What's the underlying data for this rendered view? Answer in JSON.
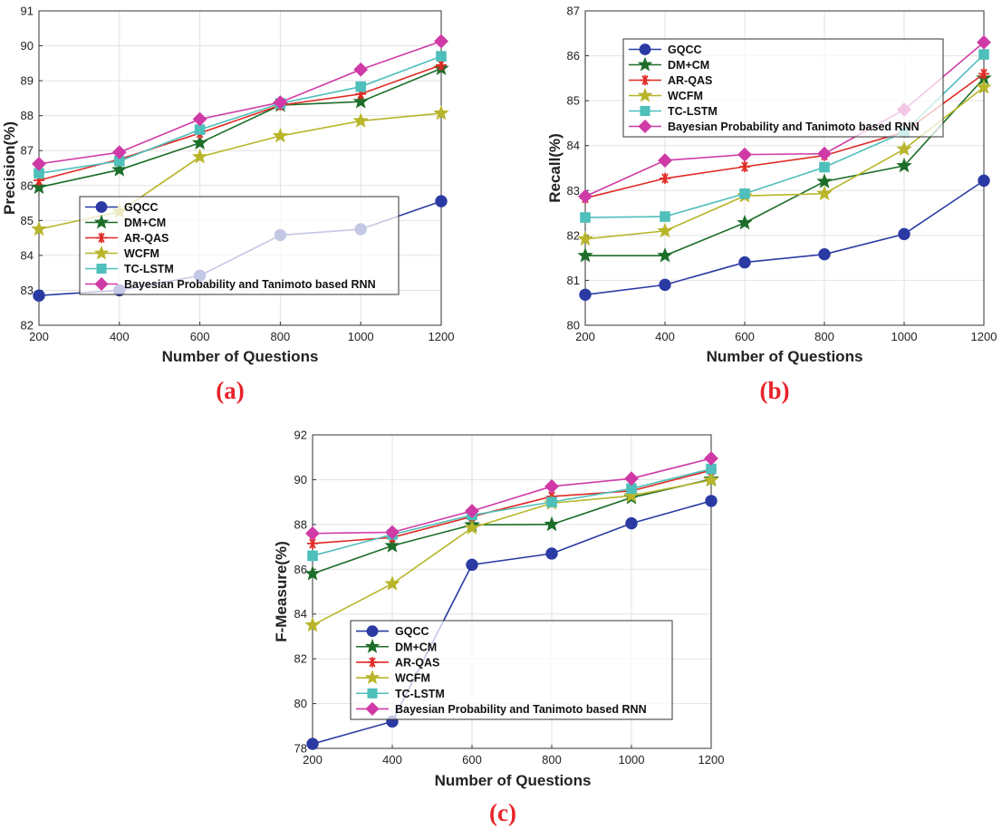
{
  "figure": {
    "captions": [
      "(a)",
      "(b)",
      "(c)"
    ]
  },
  "series_style": [
    {
      "name": "GQCC",
      "color": "#2b3aa3",
      "marker": "circle"
    },
    {
      "name": "DM+CM",
      "color": "#1d6e2a",
      "marker": "star"
    },
    {
      "name": "AR-QAS",
      "color": "#e02a25",
      "marker": "asterisk"
    },
    {
      "name": "WCFM",
      "color": "#b8b52a",
      "marker": "star"
    },
    {
      "name": "TC-LSTM",
      "color": "#4fbfbb",
      "marker": "square"
    },
    {
      "name": "Bayesian Probability and Tanimoto based RNN",
      "color": "#cf3aa6",
      "marker": "diamond"
    }
  ],
  "chart_data": [
    {
      "type": "line",
      "caption": "(a)",
      "xlabel": "Number of Questions",
      "ylabel": "Precision(%)",
      "x": [
        200,
        400,
        600,
        800,
        1000,
        1200
      ],
      "xlim": [
        200,
        1200
      ],
      "ylim": [
        82,
        91
      ],
      "yticks": [
        82,
        83,
        84,
        85,
        86,
        87,
        88,
        89,
        90,
        91
      ],
      "grid": true,
      "legend": "lower-left",
      "series": [
        {
          "name": "GQCC",
          "values": [
            82.85,
            83.0,
            83.42,
            84.58,
            84.75,
            85.55
          ]
        },
        {
          "name": "DM+CM",
          "values": [
            85.95,
            86.45,
            87.22,
            88.3,
            88.4,
            89.35
          ]
        },
        {
          "name": "AR-QAS",
          "values": [
            86.15,
            86.75,
            87.5,
            88.3,
            88.62,
            89.45
          ]
        },
        {
          "name": "WCFM",
          "values": [
            84.75,
            85.25,
            86.82,
            87.42,
            87.85,
            88.07
          ]
        },
        {
          "name": "TC-LSTM",
          "values": [
            86.35,
            86.7,
            87.6,
            88.35,
            88.83,
            89.7
          ]
        },
        {
          "name": "Bayesian Probability and Tanimoto based RNN",
          "values": [
            86.62,
            86.95,
            87.9,
            88.38,
            89.32,
            90.13
          ]
        }
      ]
    },
    {
      "type": "line",
      "caption": "(b)",
      "xlabel": "Number of Questions",
      "ylabel": "Recall(%)",
      "x": [
        200,
        400,
        600,
        800,
        1000,
        1200
      ],
      "xlim": [
        200,
        1200
      ],
      "ylim": [
        80,
        87
      ],
      "yticks": [
        80,
        81,
        82,
        83,
        84,
        85,
        86,
        87
      ],
      "grid": true,
      "legend": "upper-left",
      "series": [
        {
          "name": "GQCC",
          "values": [
            80.68,
            80.9,
            81.4,
            81.58,
            82.03,
            83.22
          ]
        },
        {
          "name": "DM+CM",
          "values": [
            81.55,
            81.55,
            82.28,
            83.2,
            83.55,
            85.5
          ]
        },
        {
          "name": "AR-QAS",
          "values": [
            82.83,
            83.27,
            83.53,
            83.78,
            84.3,
            85.6
          ]
        },
        {
          "name": "WCFM",
          "values": [
            81.92,
            82.1,
            82.88,
            82.93,
            83.92,
            85.3
          ]
        },
        {
          "name": "TC-LSTM",
          "values": [
            82.4,
            82.42,
            82.93,
            83.52,
            84.3,
            86.03
          ]
        },
        {
          "name": "Bayesian Probability and Tanimoto based RNN",
          "values": [
            82.87,
            83.67,
            83.8,
            83.82,
            84.8,
            86.3
          ]
        }
      ]
    },
    {
      "type": "line",
      "caption": "(c)",
      "xlabel": "Number of Questions",
      "ylabel": "F-Measure(%)",
      "x": [
        200,
        400,
        600,
        800,
        1000,
        1200
      ],
      "xlim": [
        200,
        1200
      ],
      "ylim": [
        78,
        92
      ],
      "yticks": [
        78,
        80,
        82,
        84,
        86,
        88,
        90,
        92
      ],
      "grid": true,
      "legend": "lower-left",
      "series": [
        {
          "name": "GQCC",
          "values": [
            78.2,
            79.2,
            86.2,
            86.7,
            88.05,
            89.05
          ]
        },
        {
          "name": "DM+CM",
          "values": [
            85.8,
            87.05,
            87.98,
            88.0,
            89.2,
            90.02
          ]
        },
        {
          "name": "AR-QAS",
          "values": [
            87.15,
            87.42,
            88.35,
            89.25,
            89.5,
            90.42
          ]
        },
        {
          "name": "WCFM",
          "values": [
            83.5,
            85.35,
            87.85,
            88.95,
            89.28,
            89.98
          ]
        },
        {
          "name": "TC-LSTM",
          "values": [
            86.6,
            87.55,
            88.42,
            89.0,
            89.6,
            90.48
          ]
        },
        {
          "name": "Bayesian Probability and Tanimoto based RNN",
          "values": [
            87.6,
            87.65,
            88.6,
            89.7,
            90.05,
            90.95
          ]
        }
      ]
    }
  ]
}
